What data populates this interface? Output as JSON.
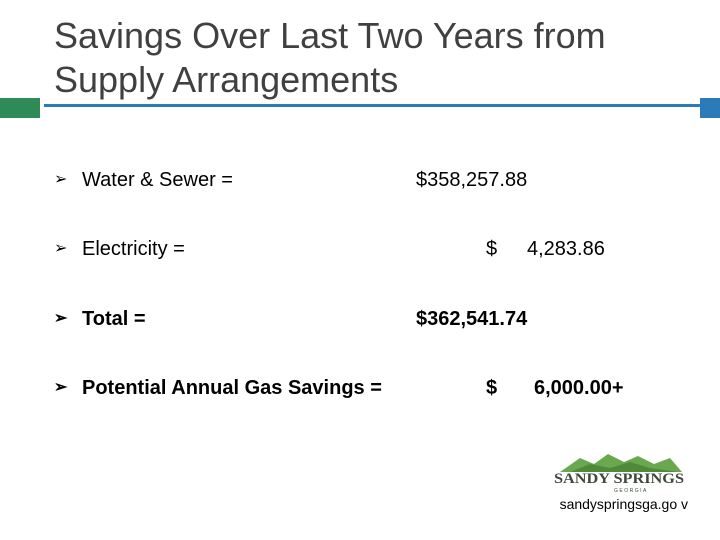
{
  "slide": {
    "title_line1": "Savings Over Last Two Years from",
    "title_line2": "Supply Arrangements"
  },
  "rows": [
    {
      "label": "Water & Sewer =",
      "value": "$358,257.88"
    },
    {
      "label": "Electricity =",
      "currency": "$",
      "value": "4,283.86"
    },
    {
      "label": "Total =",
      "value": "$362,541.74"
    },
    {
      "label": "Potential Annual Gas Savings =",
      "currency": "$",
      "value": "6,000.00+"
    }
  ],
  "bullet_glyph": "➢",
  "logo": {
    "name": "SANDY SPRINGS",
    "sub": "GEORGIA",
    "color_green": "#6aa84f",
    "color_text": "#3d4a3a"
  },
  "footer": {
    "url": "sandyspringsga.go v"
  },
  "colors": {
    "rule_green": "#2e8b57",
    "rule_blue": "#2b7bb9",
    "title": "#404040"
  }
}
